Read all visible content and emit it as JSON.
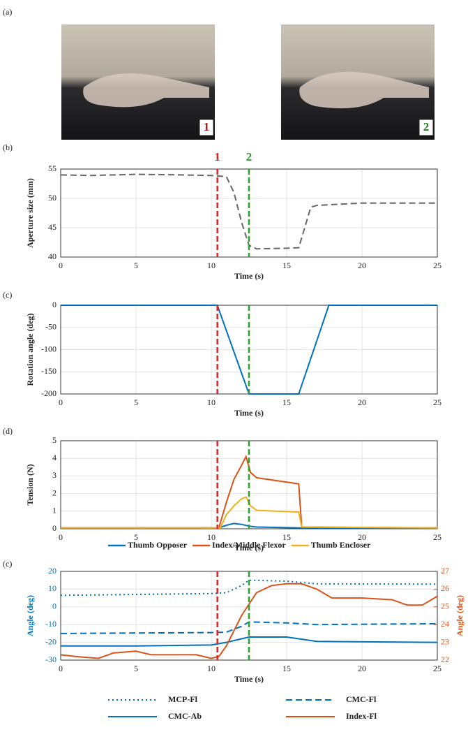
{
  "photos": {
    "panel_label": "(a)",
    "markers": [
      "1",
      "2"
    ]
  },
  "chart_data": [
    {
      "type": "line",
      "panel_label": "(b)",
      "xlabel": "Time (s)",
      "ylabel": "Aperture size (mm)",
      "xlim": [
        0,
        25
      ],
      "xticks": [
        0,
        5,
        10,
        15,
        20,
        25
      ],
      "ylim": [
        40,
        55
      ],
      "yticks": [
        40,
        45,
        50,
        55
      ],
      "grid": true,
      "vlines": [
        {
          "x": 10.4,
          "color": "#d62728",
          "label": "1"
        },
        {
          "x": 12.5,
          "color": "#2ca02c",
          "label": "2"
        }
      ],
      "series": [
        {
          "color": "#666666",
          "style": "dashed",
          "x": [
            0,
            2,
            5,
            8,
            10,
            11,
            11.5,
            12,
            12.5,
            13,
            15,
            15.8,
            16.2,
            16.6,
            17,
            20,
            25
          ],
          "values": [
            54,
            53.9,
            54.1,
            54,
            53.9,
            53.7,
            51,
            46,
            42,
            41.4,
            41.5,
            41.6,
            45,
            48.5,
            48.8,
            49.2,
            49.2
          ]
        }
      ]
    },
    {
      "type": "line",
      "panel_label": "(c)",
      "xlabel": "Time (s)",
      "ylabel": "Rotation angle (deg)",
      "xlim": [
        0,
        25
      ],
      "xticks": [
        0,
        5,
        10,
        15,
        20,
        25
      ],
      "ylim": [
        -200,
        0
      ],
      "yticks": [
        -200,
        -150,
        -100,
        -50,
        0
      ],
      "grid": true,
      "vlines": [
        {
          "x": 10.4,
          "color": "#d62728"
        },
        {
          "x": 12.5,
          "color": "#2ca02c"
        }
      ],
      "series": [
        {
          "color": "#0072BD",
          "style": "solid",
          "x": [
            0,
            10.4,
            12.5,
            15.8,
            17.8,
            25
          ],
          "values": [
            0,
            0,
            -200,
            -200,
            0,
            0
          ]
        }
      ]
    },
    {
      "type": "line",
      "panel_label": "(d)",
      "xlabel": "Time (s)",
      "ylabel": "Tension (N)",
      "xlim": [
        0,
        25
      ],
      "xticks": [
        0,
        5,
        10,
        15,
        20,
        25
      ],
      "ylim": [
        0,
        5
      ],
      "yticks": [
        0,
        1,
        2,
        3,
        4,
        5
      ],
      "grid": true,
      "vlines": [
        {
          "x": 10.4,
          "color": "#d62728"
        },
        {
          "x": 12.5,
          "color": "#2ca02c"
        }
      ],
      "series": [
        {
          "name": "Thumb Opposer",
          "color": "#0072BD",
          "style": "solid",
          "x": [
            0,
            10.5,
            11,
            11.5,
            12,
            12.5,
            13,
            15.8,
            25
          ],
          "values": [
            0.05,
            0.05,
            0.2,
            0.3,
            0.25,
            0.15,
            0.1,
            0.05,
            0.05
          ]
        },
        {
          "name": "Index/Middle Flexor",
          "color": "#D95319",
          "style": "solid",
          "x": [
            0,
            10.5,
            11,
            11.5,
            12,
            12.3,
            12.6,
            13,
            15.8,
            16,
            25
          ],
          "values": [
            0.05,
            0.05,
            1.5,
            2.8,
            3.6,
            4.1,
            3.2,
            2.9,
            2.55,
            0.1,
            0.05
          ]
        },
        {
          "name": "Thumb Encloser",
          "color": "#EDB120",
          "style": "solid",
          "x": [
            0,
            10.6,
            11,
            11.5,
            12,
            12.3,
            12.6,
            13,
            15.8,
            16,
            25
          ],
          "values": [
            0.05,
            0.05,
            0.8,
            1.3,
            1.7,
            1.8,
            1.3,
            1.05,
            0.95,
            0.1,
            0.05
          ]
        }
      ]
    },
    {
      "type": "line",
      "panel_label": "(c)",
      "xlabel": "Time (s)",
      "ylabel": "Angle (deg)",
      "y2label": "Angle (deg)",
      "ycolor": "#0072BD",
      "y2color": "#D95319",
      "xlim": [
        0,
        25
      ],
      "xticks": [
        0,
        5,
        10,
        15,
        20,
        25
      ],
      "ylim": [
        -30,
        20
      ],
      "yticks": [
        -30,
        -20,
        -10,
        0,
        10,
        20
      ],
      "y2lim": [
        22,
        27
      ],
      "y2ticks": [
        22,
        23,
        24,
        25,
        26,
        27
      ],
      "grid": true,
      "vlines": [
        {
          "x": 10.4,
          "color": "#d62728"
        },
        {
          "x": 12.5,
          "color": "#2ca02c"
        }
      ],
      "series": [
        {
          "name": "MCP-Fl",
          "color": "#0072BD",
          "style": "dotted",
          "x": [
            0,
            5,
            10,
            11,
            12,
            12.5,
            15,
            17,
            25
          ],
          "values": [
            6.5,
            7,
            7.5,
            8,
            12,
            15,
            14.5,
            13,
            12.8
          ]
        },
        {
          "name": "CMC-Fl",
          "color": "#0072BD",
          "style": "dashed",
          "x": [
            0,
            10,
            11,
            12,
            12.5,
            15,
            17,
            25
          ],
          "values": [
            -15,
            -14.5,
            -14.3,
            -11,
            -8.5,
            -9,
            -10,
            -9.5
          ]
        },
        {
          "name": "CMC-Ab",
          "color": "#0072BD",
          "style": "solid",
          "x": [
            0,
            5,
            10,
            11,
            12.5,
            15,
            17,
            25
          ],
          "values": [
            -22,
            -22,
            -21.5,
            -20,
            -17,
            -17,
            -19.5,
            -20
          ]
        },
        {
          "name": "Index-Fl",
          "color": "#D95319",
          "style": "solid",
          "axis": "y2",
          "x": [
            0,
            1,
            2.5,
            3.5,
            5,
            6,
            7,
            9,
            10,
            10.5,
            11,
            12,
            13,
            14,
            15,
            16,
            17,
            18,
            20,
            22,
            23,
            24,
            25
          ],
          "values": [
            22.3,
            22.2,
            22.1,
            22.4,
            22.5,
            22.3,
            22.3,
            22.3,
            22.1,
            22.2,
            22.8,
            24.5,
            25.8,
            26.2,
            26.3,
            26.3,
            26,
            25.5,
            25.5,
            25.4,
            25.1,
            25.1,
            25.6
          ]
        }
      ]
    }
  ]
}
